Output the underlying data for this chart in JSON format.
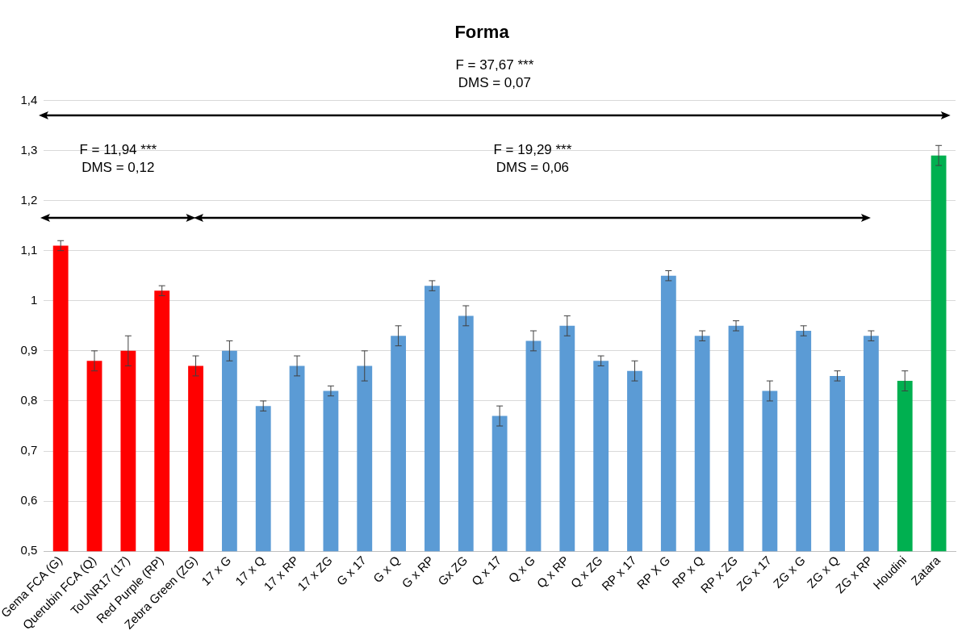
{
  "chart_data": {
    "type": "bar",
    "title": "Forma",
    "categories": [
      "Gema FCA (G)",
      "Querubin FCA (Q)",
      "ToUNR17 (17)",
      "Red Purple (RP)",
      "Zebra Green (ZG)",
      "17 x G",
      "17 x Q",
      "17 x RP",
      "17 x ZG",
      "G x 17",
      "G x Q",
      "G x RP",
      "Gx ZG",
      "Q x 17",
      "Q x G",
      "Q x RP",
      "Q x ZG",
      "RP x 17",
      "RP X G",
      "RP x Q",
      "RP x ZG",
      "ZG x 17",
      "ZG x G",
      "ZG x Q",
      "ZG x RP",
      "Houdini",
      "Zatara"
    ],
    "values": [
      1.11,
      0.88,
      0.9,
      1.02,
      0.87,
      0.9,
      0.79,
      0.87,
      0.82,
      0.87,
      0.93,
      1.03,
      0.97,
      0.77,
      0.92,
      0.95,
      0.88,
      0.86,
      1.05,
      0.93,
      0.95,
      0.82,
      0.94,
      0.85,
      0.93,
      0.84,
      1.29
    ],
    "errors": [
      0.01,
      0.02,
      0.03,
      0.01,
      0.02,
      0.02,
      0.01,
      0.02,
      0.01,
      0.03,
      0.02,
      0.01,
      0.02,
      0.02,
      0.02,
      0.02,
      0.01,
      0.02,
      0.01,
      0.01,
      0.01,
      0.02,
      0.01,
      0.01,
      0.01,
      0.02,
      0.02
    ],
    "colors": [
      "#ff0000",
      "#ff0000",
      "#ff0000",
      "#ff0000",
      "#ff0000",
      "#5b9bd5",
      "#5b9bd5",
      "#5b9bd5",
      "#5b9bd5",
      "#5b9bd5",
      "#5b9bd5",
      "#5b9bd5",
      "#5b9bd5",
      "#5b9bd5",
      "#5b9bd5",
      "#5b9bd5",
      "#5b9bd5",
      "#5b9bd5",
      "#5b9bd5",
      "#5b9bd5",
      "#5b9bd5",
      "#5b9bd5",
      "#5b9bd5",
      "#5b9bd5",
      "#5b9bd5",
      "#00b050",
      "#00b050"
    ],
    "ylim": [
      0.5,
      1.4
    ],
    "yticks": [
      {
        "value": 0.5,
        "label": "0,5"
      },
      {
        "value": 0.6,
        "label": "0,6"
      },
      {
        "value": 0.7,
        "label": "0,7"
      },
      {
        "value": 0.8,
        "label": "0,8"
      },
      {
        "value": 0.9,
        "label": "0,9"
      },
      1,
      {
        "value": 1.1,
        "label": "1,1"
      },
      {
        "value": 1.2,
        "label": "1,2"
      },
      {
        "value": 1.3,
        "label": "1,3"
      },
      {
        "value": 1.4,
        "label": "1,4"
      }
    ],
    "grid": "y",
    "annotations": [
      "F = 37,67 ***",
      "DMS = 0,07",
      "F = 11,94 ***",
      "DMS = 0,12",
      "F = 19,29 ***",
      "DMS = 0,06"
    ]
  }
}
